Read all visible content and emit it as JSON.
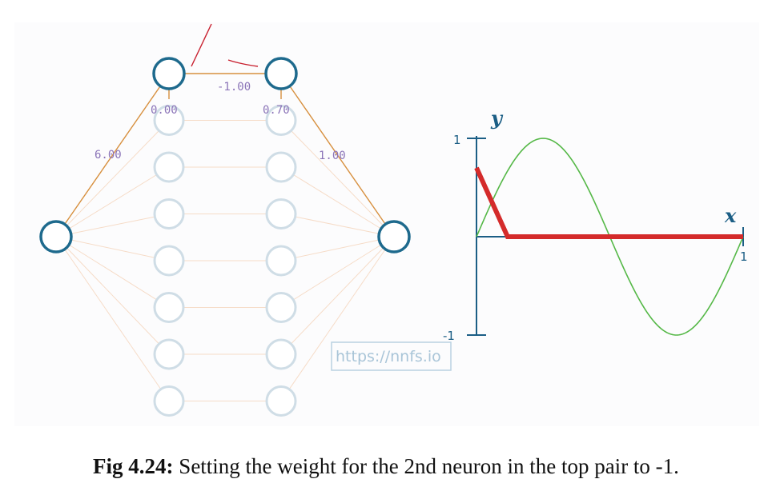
{
  "network": {
    "input_neuron": "input-neuron",
    "output_neuron": "output-neuron",
    "weights": {
      "input_to_top_left": "6.00",
      "top_pair_connection": "-1.00",
      "top_right_to_output": "1.00"
    },
    "biases": {
      "top_left": "0.00",
      "top_right": "0.70"
    },
    "hidden_rows_per_layer": 8
  },
  "chart_data": {
    "type": "line",
    "xlabel": "x",
    "ylabel": "y",
    "xlim": [
      0,
      1
    ],
    "ylim": [
      -1,
      1
    ],
    "x_ticks": [
      "1"
    ],
    "y_ticks": [
      "1",
      "-1"
    ],
    "series": [
      {
        "name": "sine",
        "function": "sin(2*pi*x)",
        "color": "#55b847",
        "x": [
          0,
          0.05,
          0.1,
          0.15,
          0.2,
          0.25,
          0.3,
          0.35,
          0.4,
          0.45,
          0.5,
          0.55,
          0.6,
          0.65,
          0.7,
          0.75,
          0.8,
          0.85,
          0.9,
          0.95,
          1.0
        ],
        "y": [
          0,
          0.309,
          0.588,
          0.809,
          0.951,
          1.0,
          0.951,
          0.809,
          0.588,
          0.309,
          0,
          -0.309,
          -0.588,
          -0.809,
          -0.951,
          -1.0,
          -0.951,
          -0.809,
          -0.588,
          -0.309,
          0
        ]
      },
      {
        "name": "network output",
        "color": "#d42b2b",
        "x": [
          0,
          0.1167,
          1.0
        ],
        "y": [
          0.7,
          0,
          0
        ]
      }
    ]
  },
  "watermark": "https://nnfs.io",
  "caption": {
    "label": "Fig 4.24:",
    "text": " Setting the weight for the 2nd neuron in the top pair to -1."
  },
  "colors": {
    "active_neuron": "#1e6a8d",
    "faded_neuron": "#cfdde6",
    "active_connection": "#d7903f",
    "faded_connection": "#f6dcc8",
    "axis": "#1b5e85",
    "annotation": "#c8202f"
  }
}
